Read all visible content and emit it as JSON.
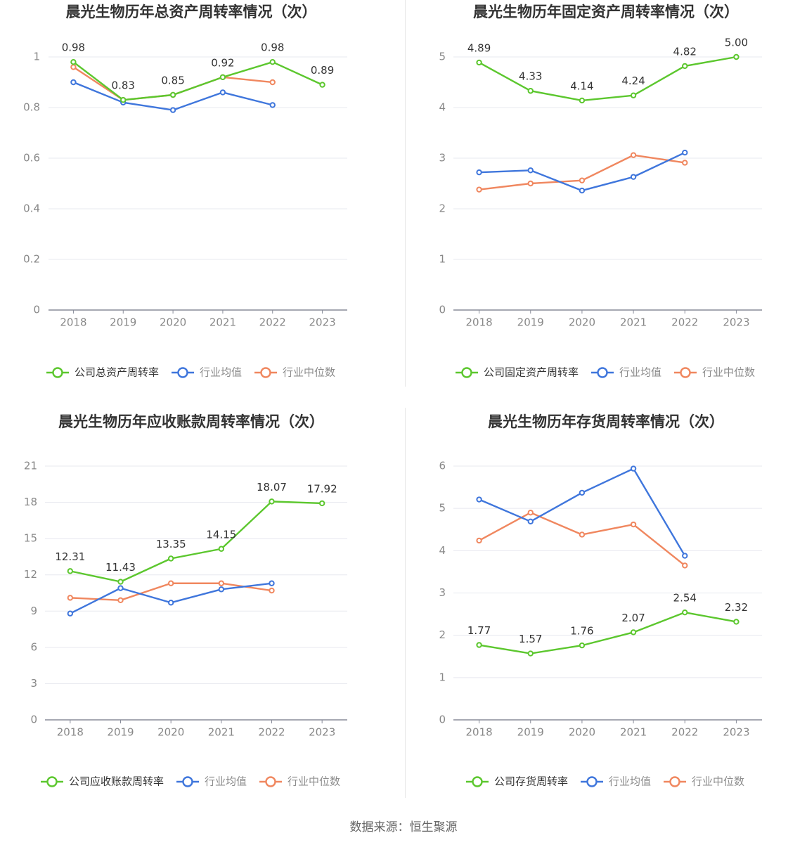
{
  "colors": {
    "company": "#5cc72e",
    "avg": "#3f76dc",
    "median": "#f0875f",
    "grid": "#e7e8ef",
    "axis": "#888c99",
    "tick": "#888888",
    "label": "#333333",
    "title": "#333333"
  },
  "source": "数据来源：恒生聚源",
  "chart_data": [
    {
      "type": "line",
      "title": "晨光生物历年总资产周转率情况（次）",
      "categories": [
        "2018",
        "2019",
        "2020",
        "2021",
        "2022",
        "2023"
      ],
      "ylim": [
        0,
        1
      ],
      "yticks": [
        0,
        0.2,
        0.4,
        0.6,
        0.8,
        1
      ],
      "ytick_labels": [
        "0",
        "0.2",
        "0.4",
        "0.6",
        "0.8",
        "1"
      ],
      "grid": true,
      "legend": "bottom",
      "series": [
        {
          "name": "公司总资产周转率",
          "key": "company",
          "values": [
            0.98,
            0.83,
            0.85,
            0.92,
            0.98,
            0.89
          ],
          "labels": [
            "0.98",
            "0.83",
            "0.85",
            "0.92",
            "0.98",
            "0.89"
          ]
        },
        {
          "name": "行业均值",
          "key": "avg",
          "values": [
            0.9,
            0.82,
            0.79,
            0.86,
            0.81,
            null
          ]
        },
        {
          "name": "行业中位数",
          "key": "median",
          "values": [
            0.96,
            0.83,
            0.85,
            0.92,
            0.9,
            null
          ]
        }
      ]
    },
    {
      "type": "line",
      "title": "晨光生物历年固定资产周转率情况（次）",
      "categories": [
        "2018",
        "2019",
        "2020",
        "2021",
        "2022",
        "2023"
      ],
      "ylim": [
        0,
        5
      ],
      "yticks": [
        0,
        1,
        2,
        3,
        4,
        5
      ],
      "ytick_labels": [
        "0",
        "1",
        "2",
        "3",
        "4",
        "5"
      ],
      "grid": true,
      "legend": "bottom",
      "series": [
        {
          "name": "公司固定资产周转率",
          "key": "company",
          "values": [
            4.89,
            4.33,
            4.14,
            4.24,
            4.82,
            5.0
          ],
          "labels": [
            "4.89",
            "4.33",
            "4.14",
            "4.24",
            "4.82",
            "5.00"
          ]
        },
        {
          "name": "行业均值",
          "key": "avg",
          "values": [
            2.72,
            2.76,
            2.36,
            2.63,
            3.11,
            null
          ]
        },
        {
          "name": "行业中位数",
          "key": "median",
          "values": [
            2.38,
            2.5,
            2.56,
            3.06,
            2.91,
            null
          ]
        }
      ]
    },
    {
      "type": "line",
      "title": "晨光生物历年应收账款周转率情况（次）",
      "categories": [
        "2018",
        "2019",
        "2020",
        "2021",
        "2022",
        "2023"
      ],
      "ylim": [
        0,
        21
      ],
      "yticks": [
        0,
        3,
        6,
        9,
        12,
        15,
        18,
        21
      ],
      "ytick_labels": [
        "0",
        "3",
        "6",
        "9",
        "12",
        "15",
        "18",
        "21"
      ],
      "grid": true,
      "legend": "bottom",
      "series": [
        {
          "name": "公司应收账款周转率",
          "key": "company",
          "values": [
            12.31,
            11.43,
            13.35,
            14.15,
            18.07,
            17.92
          ],
          "labels": [
            "12.31",
            "11.43",
            "13.35",
            "14.15",
            "18.07",
            "17.92"
          ]
        },
        {
          "name": "行业均值",
          "key": "avg",
          "values": [
            8.8,
            10.9,
            9.7,
            10.8,
            11.3,
            null
          ]
        },
        {
          "name": "行业中位数",
          "key": "median",
          "values": [
            10.1,
            9.9,
            11.3,
            11.3,
            10.7,
            null
          ]
        }
      ]
    },
    {
      "type": "line",
      "title": "晨光生物历年存货周转率情况（次）",
      "categories": [
        "2018",
        "2019",
        "2020",
        "2021",
        "2022",
        "2023"
      ],
      "ylim": [
        0,
        6
      ],
      "yticks": [
        0,
        1,
        2,
        3,
        4,
        5,
        6
      ],
      "ytick_labels": [
        "0",
        "1",
        "2",
        "3",
        "4",
        "5",
        "6"
      ],
      "grid": true,
      "legend": "bottom",
      "series": [
        {
          "name": "公司存货周转率",
          "key": "company",
          "values": [
            1.77,
            1.57,
            1.76,
            2.07,
            2.54,
            2.32
          ],
          "labels": [
            "1.77",
            "1.57",
            "1.76",
            "2.07",
            "2.54",
            "2.32"
          ]
        },
        {
          "name": "行业均值",
          "key": "avg",
          "values": [
            5.21,
            4.69,
            5.37,
            5.94,
            3.88,
            null
          ]
        },
        {
          "name": "行业中位数",
          "key": "median",
          "values": [
            4.24,
            4.9,
            4.38,
            4.62,
            3.65,
            null
          ]
        }
      ]
    }
  ]
}
